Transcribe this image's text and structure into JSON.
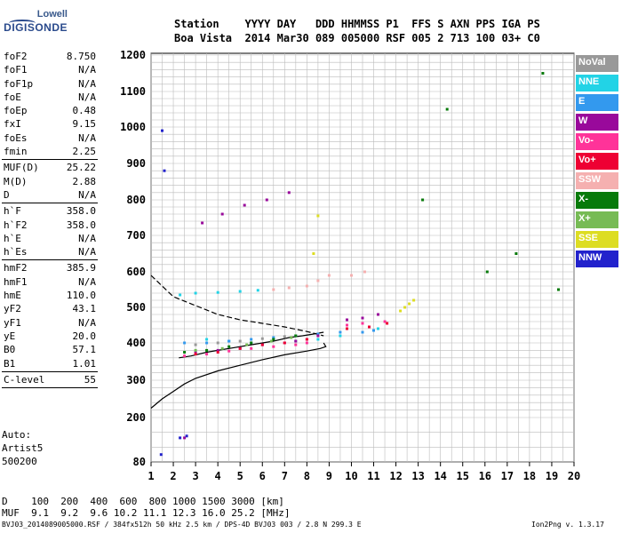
{
  "logo": {
    "line1": "Lowell",
    "line2": "DIGISONDE"
  },
  "header": {
    "row1": "Station    YYYY DAY   DDD HHMMSS P1  FFS S AXN PPS IGA PS",
    "row2": "Boa Vista  2014 Mar30 089 005000 RSF 005 2 713 100 03+ C0"
  },
  "params": {
    "group1": [
      {
        "k": "foF2",
        "v": "8.750"
      },
      {
        "k": "foF1",
        "v": "N/A"
      },
      {
        "k": "foF1p",
        "v": "N/A"
      },
      {
        "k": "foE",
        "v": "N/A"
      },
      {
        "k": "foEp",
        "v": "0.48"
      },
      {
        "k": "fxI",
        "v": "9.15"
      },
      {
        "k": "foEs",
        "v": "N/A"
      },
      {
        "k": "fmin",
        "v": "2.25"
      }
    ],
    "group2": [
      {
        "k": "MUF(D)",
        "v": "25.22"
      },
      {
        "k": "M(D)",
        "v": "2.88"
      },
      {
        "k": "D",
        "v": "N/A"
      }
    ],
    "group3": [
      {
        "k": "h`F",
        "v": "358.0"
      },
      {
        "k": "h`F2",
        "v": "358.0"
      },
      {
        "k": "h`E",
        "v": "N/A"
      },
      {
        "k": "h`Es",
        "v": "N/A"
      }
    ],
    "group4": [
      {
        "k": "hmF2",
        "v": "385.9"
      },
      {
        "k": "hmF1",
        "v": "N/A"
      },
      {
        "k": "hmE",
        "v": "110.0"
      },
      {
        "k": "yF2",
        "v": "43.1"
      },
      {
        "k": "yF1",
        "v": "N/A"
      },
      {
        "k": "yE",
        "v": "20.0"
      },
      {
        "k": "B0",
        "v": "57.1"
      },
      {
        "k": "B1",
        "v": "1.01"
      }
    ],
    "group5": [
      {
        "k": "C-level",
        "v": "55"
      }
    ]
  },
  "auto": {
    "line1": "Auto:",
    "line2": "Artist5",
    "line3": "500200"
  },
  "legend": [
    {
      "label": "NoVal",
      "color": "#999999"
    },
    {
      "label": "NNE",
      "color": "#22d3e6"
    },
    {
      "label": "E",
      "color": "#3399ee"
    },
    {
      "label": "W",
      "color": "#99099b"
    },
    {
      "label": "Vo-",
      "color": "#ff3399"
    },
    {
      "label": "Vo+",
      "color": "#ee0033"
    },
    {
      "label": "SSW",
      "color": "#f5b0b0"
    },
    {
      "label": "X-",
      "color": "#077a0a"
    },
    {
      "label": "X+",
      "color": "#77bb55"
    },
    {
      "label": "SSE",
      "color": "#dddd22"
    },
    {
      "label": "NNW",
      "color": "#2222cc"
    }
  ],
  "muf_table": {
    "row1": "D    100  200  400  600  800 1000 1500 3000 [km]",
    "row2": "MUF  9.1  9.2  9.6 10.2 11.1 12.3 16.0 25.2 [MHz]"
  },
  "footer": {
    "left": "BVJ03_2014089005000.RSF / 384fx512h 50 kHz 2.5 km / DPS-4D BVJ03 003 / 2.8 N 299.3 E",
    "right": "Ion2Png v. 1.3.17"
  },
  "chart_data": {
    "type": "scatter",
    "xlim": [
      1,
      20
    ],
    "ylim": [
      80,
      1200
    ],
    "x_ticks": [
      1,
      2,
      3,
      4,
      5,
      6,
      7,
      8,
      9,
      10,
      11,
      12,
      13,
      14,
      15,
      16,
      17,
      18,
      19,
      20
    ],
    "y_ticks": [
      80,
      200,
      300,
      400,
      500,
      600,
      700,
      800,
      900,
      1000,
      1100,
      1200
    ],
    "grid": true,
    "series": [
      {
        "name": "NNE",
        "color": "#22d3e6",
        "x": [
          2.3,
          3.0,
          4.0,
          5.0,
          5.8,
          3.5,
          4.5,
          5.5,
          6.5,
          7.5,
          8.5,
          9.5,
          10.5,
          11.2
        ],
        "y": [
          535,
          540,
          542,
          545,
          548,
          410,
          405,
          400,
          410,
          405,
          410,
          420,
          430,
          440
        ]
      },
      {
        "name": "E",
        "color": "#3399ee",
        "x": [
          2.5,
          3.5,
          4.5,
          5.5,
          6.5,
          7.5,
          8.5,
          9.5,
          10.5,
          11.0
        ],
        "y": [
          400,
          400,
          405,
          410,
          415,
          420,
          425,
          430,
          430,
          435
        ]
      },
      {
        "name": "W",
        "color": "#99099b",
        "x": [
          3.0,
          4.0,
          5.0,
          6.0,
          7.0,
          7.5,
          8.0,
          8.5,
          3.3,
          4.2,
          5.2,
          6.2,
          7.2,
          2.5,
          9.8,
          10.5,
          11.2
        ],
        "y": [
          375,
          380,
          385,
          395,
          400,
          405,
          410,
          420,
          735,
          760,
          785,
          800,
          820,
          145,
          465,
          470,
          480
        ]
      },
      {
        "name": "Vo-",
        "color": "#ff3399",
        "x": [
          2.5,
          3.5,
          4.5,
          5.5,
          6.5,
          7.5,
          8.0,
          9.8,
          10.5,
          11.5
        ],
        "y": [
          365,
          370,
          378,
          385,
          390,
          395,
          400,
          450,
          455,
          460
        ]
      },
      {
        "name": "Vo+",
        "color": "#ee0033",
        "x": [
          3.0,
          4.0,
          5.0,
          6.0,
          7.0,
          8.0,
          9.8,
          10.8,
          11.6
        ],
        "y": [
          370,
          375,
          385,
          395,
          400,
          410,
          440,
          445,
          455
        ]
      },
      {
        "name": "SSW",
        "color": "#f5b0b0",
        "x": [
          6.5,
          7.2,
          8.0,
          8.5,
          9.0,
          10.0,
          10.6
        ],
        "y": [
          550,
          555,
          560,
          575,
          590,
          590,
          600
        ]
      },
      {
        "name": "X-",
        "color": "#077a0a",
        "x": [
          2.5,
          3.5,
          4.5,
          5.5,
          6.5,
          7.5,
          13.2,
          14.3,
          16.1,
          17.4,
          18.6,
          19.3
        ],
        "y": [
          375,
          380,
          390,
          400,
          410,
          420,
          800,
          1050,
          600,
          650,
          1150,
          550
        ]
      },
      {
        "name": "X+",
        "color": "#77bb55",
        "x": [
          3.0,
          4.2,
          5.3,
          6.4,
          7.3
        ],
        "y": [
          380,
          385,
          395,
          405,
          415
        ]
      },
      {
        "name": "SSE",
        "color": "#dddd22",
        "x": [
          8.3,
          12.2,
          12.4,
          12.6,
          12.8,
          8.5
        ],
        "y": [
          650,
          490,
          500,
          510,
          520,
          755
        ]
      },
      {
        "name": "NNW",
        "color": "#2222cc",
        "x": [
          1.5,
          1.6,
          2.3,
          2.6,
          1.45
        ],
        "y": [
          990,
          880,
          145,
          150,
          100
        ]
      },
      {
        "name": "NoVal",
        "color": "#999999",
        "x": [
          3.0,
          4.0,
          5.0,
          6.0,
          7.0
        ],
        "y": [
          395,
          400,
          405,
          412,
          418
        ]
      }
    ],
    "profile_curves": [
      {
        "name": "trace",
        "style": "solid",
        "x": [
          2.25,
          2.8,
          3.5,
          4.5,
          5.5,
          6.5,
          7.2,
          7.8,
          8.3,
          8.75
        ],
        "y": [
          360,
          365,
          375,
          385,
          395,
          405,
          415,
          420,
          425,
          430
        ]
      },
      {
        "name": "profile",
        "style": "solid",
        "x": [
          1.0,
          1.5,
          2.0,
          2.5,
          3.0,
          4.0,
          5.0,
          6.0,
          7.0,
          8.0,
          8.6,
          8.85,
          8.75
        ],
        "y": [
          225,
          250,
          270,
          290,
          305,
          325,
          340,
          355,
          368,
          378,
          385,
          390,
          400
        ]
      },
      {
        "name": "upper",
        "style": "dashed",
        "x": [
          1.0,
          1.5,
          2.0,
          3.0,
          4.0,
          5.0,
          6.0,
          7.0,
          8.0,
          8.75
        ],
        "y": [
          590,
          560,
          530,
          505,
          480,
          465,
          455,
          445,
          432,
          420
        ]
      }
    ]
  }
}
